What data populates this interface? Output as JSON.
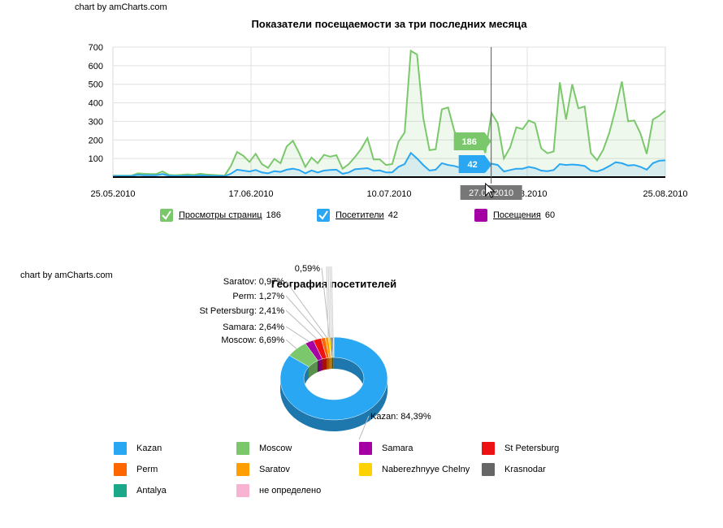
{
  "credit_top": "chart by amCharts.com",
  "credit_bottom": "chart by amCharts.com",
  "chart_data": [
    {
      "type": "line",
      "title": "Показатели посещаемости за три последних месяца",
      "ylim": [
        0,
        700
      ],
      "yticks": [
        100,
        200,
        300,
        400,
        500,
        600,
        700
      ],
      "xlim": [
        "25.05.2010",
        "25.08.2010"
      ],
      "xtick_labels": [
        "25.05.2010",
        "17.06.2010",
        "10.07.2010",
        "2.08.2010",
        "25.08.2010"
      ],
      "grid": true,
      "series": [
        {
          "name": "Просмотры страниц",
          "color": "#7bc86c",
          "current_value": "186",
          "values": [
            8,
            8,
            8,
            8,
            20,
            18,
            16,
            17,
            30,
            12,
            10,
            12,
            15,
            12,
            18,
            14,
            12,
            10,
            8,
            60,
            135,
            115,
            82,
            125,
            70,
            50,
            98,
            75,
            165,
            195,
            130,
            55,
            105,
            75,
            120,
            110,
            118,
            45,
            70,
            108,
            152,
            210,
            95,
            95,
            65,
            70,
            190,
            240,
            680,
            660,
            320,
            145,
            150,
            365,
            375,
            250,
            170,
            210,
            155,
            230,
            130,
            345,
            290,
            100,
            160,
            268,
            258,
            305,
            290,
            155,
            128,
            138,
            510,
            310,
            500,
            370,
            380,
            130,
            90,
            148,
            240,
            370,
            515,
            300,
            305,
            235,
            125,
            310,
            330,
            358
          ]
        },
        {
          "name": "Посетители",
          "color": "#2aa7f2",
          "current_value": "42",
          "values": [
            6,
            6,
            6,
            6,
            12,
            10,
            10,
            10,
            16,
            8,
            6,
            6,
            8,
            6,
            10,
            8,
            6,
            6,
            5,
            18,
            40,
            35,
            30,
            38,
            25,
            20,
            32,
            28,
            40,
            45,
            38,
            20,
            36,
            25,
            35,
            38,
            40,
            18,
            25,
            42,
            45,
            48,
            34,
            36,
            25,
            26,
            55,
            70,
            130,
            100,
            65,
            35,
            40,
            75,
            65,
            60,
            50,
            62,
            40,
            55,
            30,
            72,
            65,
            30,
            38,
            45,
            45,
            55,
            48,
            35,
            32,
            38,
            70,
            65,
            68,
            65,
            60,
            35,
            30,
            42,
            60,
            80,
            75,
            62,
            65,
            55,
            40,
            75,
            88,
            90
          ]
        },
        {
          "name": "Посещения",
          "color": "#a400a4",
          "current_value": "60",
          "values": []
        }
      ],
      "cursor": {
        "date_label": "27.07.2010",
        "balloon_pageviews": "186",
        "balloon_visitors": "42"
      }
    },
    {
      "type": "pie",
      "title": "География посетителей",
      "slices": [
        {
          "name": "Kazan",
          "value": 84.39,
          "color": "#2aa7f2",
          "label": "Kazan: 84,39%"
        },
        {
          "name": "Moscow",
          "value": 6.69,
          "color": "#7bc86c",
          "label": "Moscow: 6,69%"
        },
        {
          "name": "Samara",
          "value": 2.64,
          "color": "#a400a4",
          "label": "Samara: 2,64%"
        },
        {
          "name": "St Petersburg",
          "value": 2.41,
          "color": "#ee1111",
          "label": "St Petersburg: 2,41%"
        },
        {
          "name": "Perm",
          "value": 1.27,
          "color": "#ff6600",
          "label": "Perm: 1,27%"
        },
        {
          "name": "Saratov",
          "value": 0.97,
          "color": "#ff9e01",
          "label": "Saratov: 0,97%"
        },
        {
          "name": "Naberezhnyye Chelny",
          "value": 0.59,
          "color": "#fcd202",
          "label": "0,59%"
        },
        {
          "name": "Krasnodar",
          "value": 0.5,
          "color": "#666666",
          "label": ""
        },
        {
          "name": "Antalya",
          "value": 0.4,
          "color": "#1aa889",
          "label": ""
        },
        {
          "name": "не определено",
          "value": 0.14,
          "color": "#f8b3d2",
          "label": ""
        }
      ]
    }
  ]
}
